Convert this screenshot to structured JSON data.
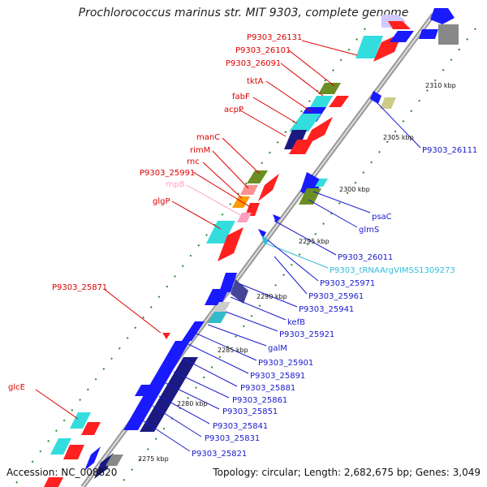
{
  "title": "Prochlorococcus marinus str. MIT 9303, complete genome",
  "footer": {
    "accession": "Accession: NC_008820",
    "info": "Topology: circular; Length: 2,682,675 bp; Genes: 3,049"
  },
  "scale_ticks": [
    "2275 kbp",
    "2280 kbp",
    "2285 kbp",
    "2290 kbp",
    "2295 kbp",
    "2300 kbp",
    "2305 kbp",
    "2310 kbp"
  ],
  "labels_red": [
    "P9303_26131",
    "P9303_26101",
    "P9303_26091",
    "tktA",
    "fabF",
    "acpP",
    "manC",
    "rimM",
    "rnc",
    "P9303_25991",
    "glgP",
    "P9303_25871",
    "glcE"
  ],
  "labels_pink": [
    "rnpB"
  ],
  "labels_blue": [
    "P9303_26111",
    "psaC",
    "glmS",
    "P9303_26011",
    "P9303_25971",
    "P9303_25961",
    "P9303_25941",
    "kefB",
    "P9303_25921",
    "galM",
    "P9303_25901",
    "P9303_25891",
    "P9303_25881",
    "P9303_25861",
    "P9303_25851",
    "P9303_25841",
    "P9303_25831",
    "P9303_25821"
  ],
  "labels_cyan": [
    "P9303_tRNAArgVIMSS1309273"
  ],
  "colors": {
    "red_gene": "#ff2020",
    "blue_gene": "#1a1aff",
    "navy_gene": "#1a1a80",
    "cyan_gene": "#33dddd",
    "olive_gene": "#6b8e23",
    "grey_gene": "#888888",
    "rna_pink": "#ff9fc0",
    "trna_cyan": "#33bbdd",
    "backbone": "#888888",
    "red_label": "#dd0000",
    "blue_label": "#1a1acc"
  }
}
